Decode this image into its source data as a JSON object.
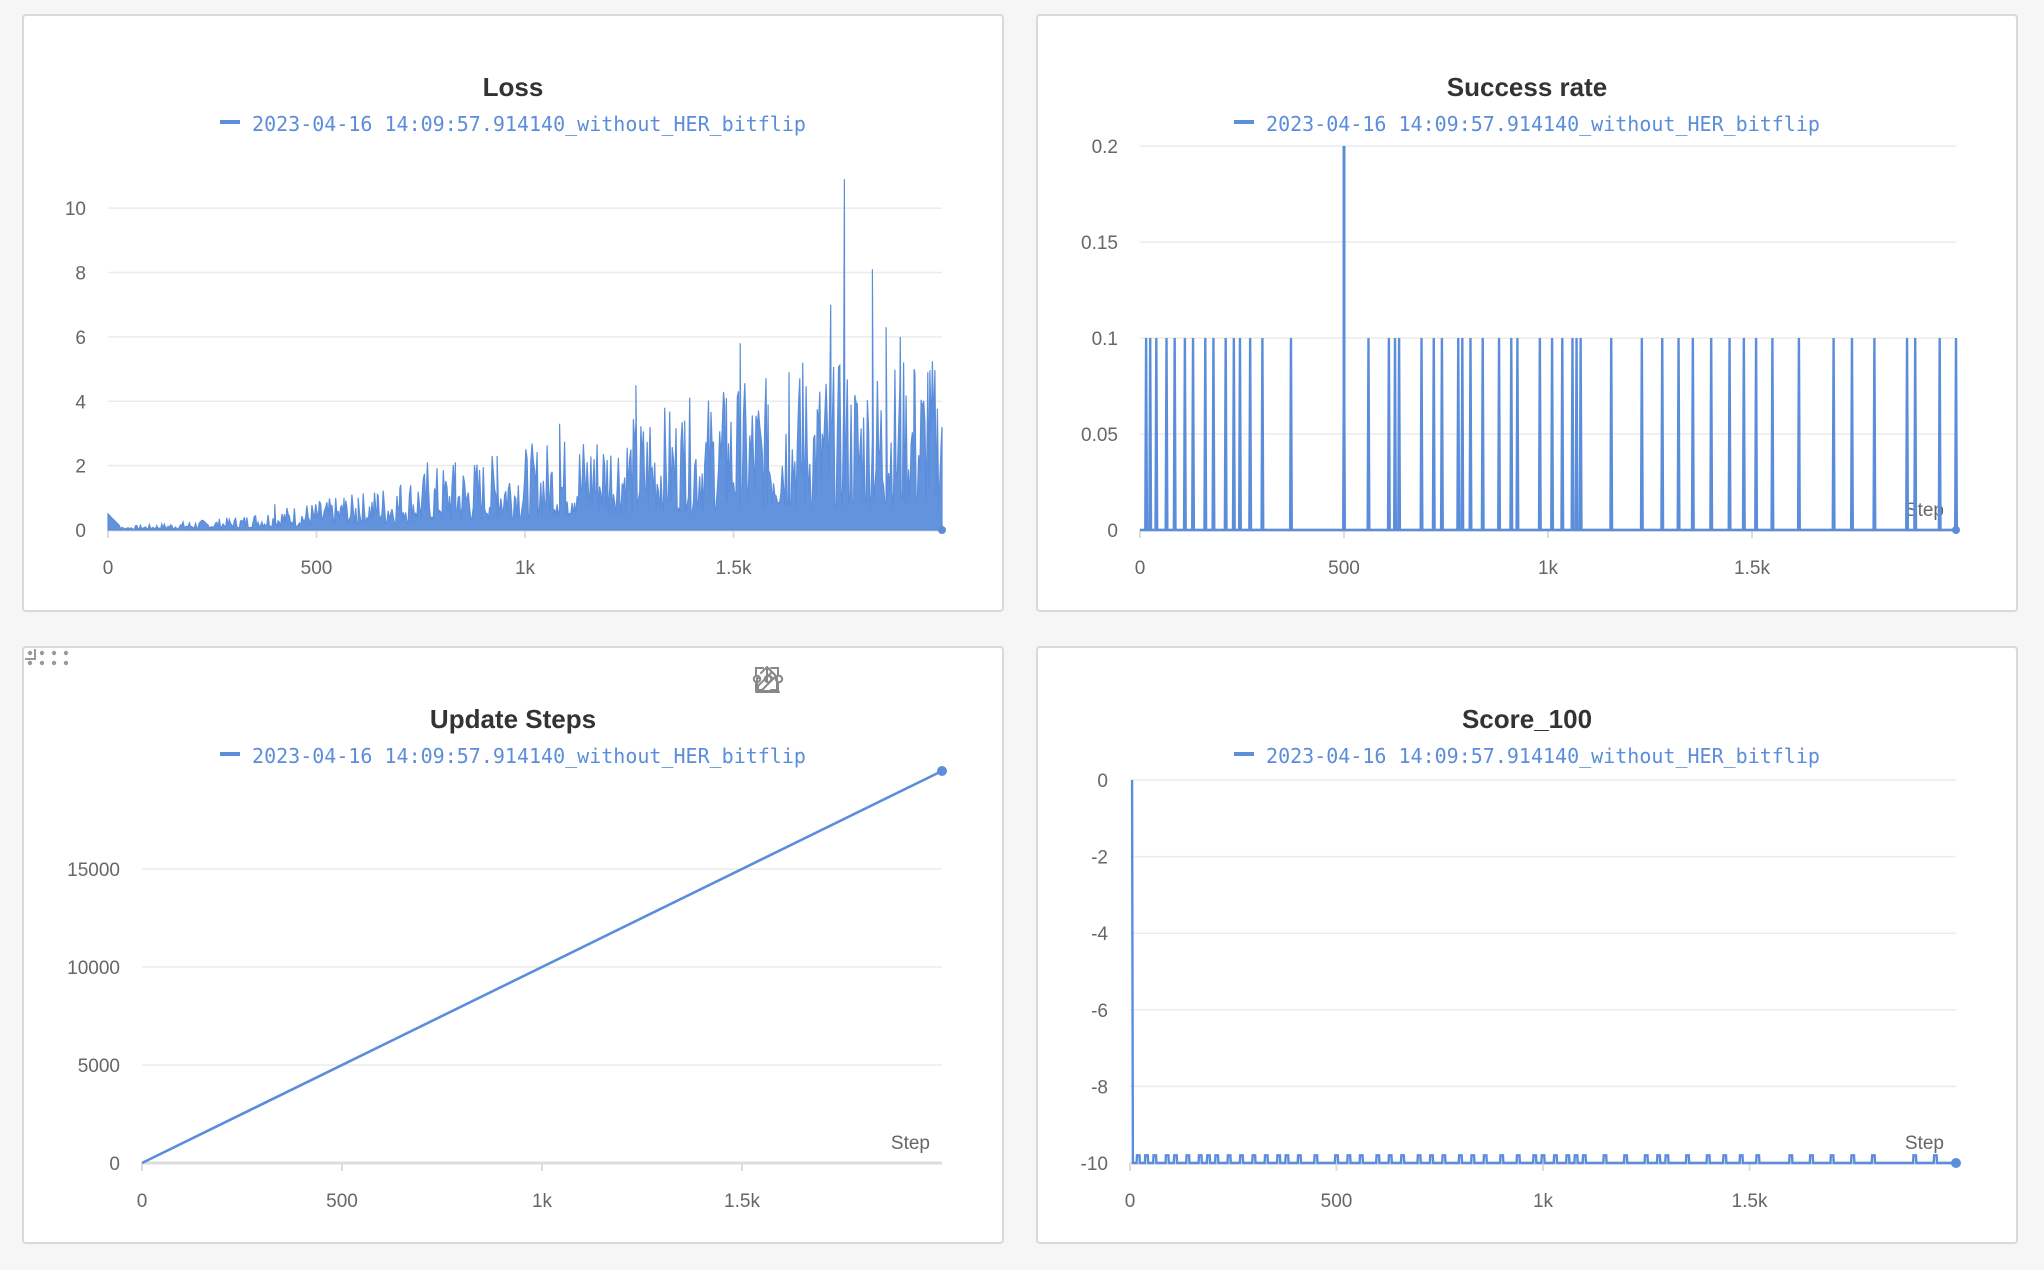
{
  "colors": {
    "series": "#5b8ddb",
    "grid": "#ececec",
    "axis": "#dddddd",
    "text": "#666666"
  },
  "panels": {
    "loss": {
      "chart_data": {
        "type": "line",
        "title": "Loss",
        "series": [
          {
            "name": "2023-04-16 14:09:57.914140_without_HER_bitflip"
          }
        ],
        "xlim": [
          0,
          2000
        ],
        "ylim": [
          0,
          11
        ],
        "x_ticks": [
          0,
          500,
          1000,
          1500
        ],
        "x_tick_labels": [
          "0",
          "500",
          "1k",
          "1.5k"
        ],
        "y_ticks": [
          0,
          2,
          4,
          6,
          8,
          10
        ],
        "y_tick_labels": [
          "0",
          "2",
          "4",
          "6",
          "8",
          "10"
        ],
        "xlabel": "",
        "ylabel": "",
        "envelope": [
          [
            0,
            0.5
          ],
          [
            30,
            0.1
          ],
          [
            100,
            0.15
          ],
          [
            200,
            0.25
          ],
          [
            300,
            0.35
          ],
          [
            400,
            0.6
          ],
          [
            500,
            0.8
          ],
          [
            600,
            1.0
          ],
          [
            700,
            1.4
          ],
          [
            800,
            1.8
          ],
          [
            900,
            2.0
          ],
          [
            1000,
            2.3
          ],
          [
            1100,
            2.6
          ],
          [
            1200,
            2.9
          ],
          [
            1300,
            3.3
          ],
          [
            1400,
            3.6
          ],
          [
            1500,
            4.0
          ],
          [
            1600,
            4.2
          ],
          [
            1700,
            4.5
          ],
          [
            1800,
            4.6
          ],
          [
            1900,
            4.7
          ],
          [
            2000,
            4.8
          ]
        ],
        "peaks": [
          [
            400,
            0.8
          ],
          [
            533,
            0.8
          ],
          [
            566,
            1.0
          ],
          [
            600,
            1.0
          ],
          [
            646,
            1.1
          ],
          [
            700,
            1.3
          ],
          [
            766,
            2.1
          ],
          [
            833,
            2.1
          ],
          [
            933,
            2.3
          ],
          [
            1083,
            3.3
          ],
          [
            1166,
            2.2
          ],
          [
            1266,
            4.5
          ],
          [
            1300,
            3.2
          ],
          [
            1383,
            3.4
          ],
          [
            1483,
            4.1
          ],
          [
            1516,
            5.8
          ],
          [
            1583,
            3.9
          ],
          [
            1633,
            4.9
          ],
          [
            1666,
            5.2
          ],
          [
            1733,
            7.0
          ],
          [
            1766,
            10.9
          ],
          [
            1833,
            8.1
          ],
          [
            1866,
            6.3
          ],
          [
            1900,
            6.0
          ],
          [
            1933,
            5.0
          ],
          [
            1966,
            4.9
          ],
          [
            2000,
            3.2
          ]
        ]
      }
    },
    "success": {
      "chart_data": {
        "type": "line",
        "title": "Success rate",
        "series": [
          {
            "name": "2023-04-16 14:09:57.914140_without_HER_bitflip"
          }
        ],
        "xlim": [
          0,
          2000
        ],
        "ylim": [
          0,
          0.2
        ],
        "x_ticks": [
          0,
          500,
          1000,
          1500
        ],
        "x_tick_labels": [
          "0",
          "500",
          "1k",
          "1.5k"
        ],
        "y_ticks": [
          0,
          0.05,
          0.1,
          0.15,
          0.2
        ],
        "y_tick_labels": [
          "0",
          "0.05",
          "0.1",
          "0.15",
          "0.2"
        ],
        "xlabel": "Step",
        "ylabel": "",
        "spikes_x": [
          15,
          25,
          40,
          65,
          85,
          110,
          130,
          160,
          180,
          210,
          230,
          245,
          270,
          300,
          370,
          500,
          560,
          610,
          625,
          635,
          690,
          720,
          740,
          780,
          790,
          810,
          840,
          880,
          910,
          925,
          980,
          1010,
          1035,
          1060,
          1070,
          1080,
          1155,
          1230,
          1280,
          1320,
          1355,
          1400,
          1445,
          1480,
          1510,
          1550,
          1615,
          1700,
          1745,
          1800,
          1880,
          1900,
          1960,
          2000
        ],
        "spike_value": 0.1,
        "peak": [
          500,
          0.2
        ]
      }
    },
    "update": {
      "chart_data": {
        "type": "line",
        "title": "Update Steps",
        "series": [
          {
            "name": "2023-04-16 14:09:57.914140_without_HER_bitflip"
          }
        ],
        "xlim": [
          0,
          2000
        ],
        "ylim": [
          0,
          20000
        ],
        "x_ticks": [
          0,
          500,
          1000,
          1500
        ],
        "x_tick_labels": [
          "0",
          "500",
          "1k",
          "1.5k"
        ],
        "y_ticks": [
          0,
          5000,
          10000,
          15000
        ],
        "y_tick_labels": [
          "0",
          "5000",
          "10000",
          "15000"
        ],
        "xlabel": "Step",
        "ylabel": "",
        "points": [
          [
            0,
            0
          ],
          [
            2000,
            20000
          ]
        ]
      }
    },
    "score": {
      "chart_data": {
        "type": "line",
        "title": "Score_100",
        "series": [
          {
            "name": "2023-04-16 14:09:57.914140_without_HER_bitflip"
          }
        ],
        "xlim": [
          0,
          2000
        ],
        "ylim": [
          -10,
          0
        ],
        "x_ticks": [
          0,
          500,
          1000,
          1500
        ],
        "x_tick_labels": [
          "0",
          "500",
          "1k",
          "1.5k"
        ],
        "y_ticks": [
          0,
          -2,
          -4,
          -6,
          -8,
          -10
        ],
        "y_tick_labels": [
          "0",
          "-2",
          "-4",
          "-6",
          "-8",
          "-10"
        ],
        "xlabel": "Step",
        "ylabel": "",
        "baseline": -10,
        "start_point": [
          5,
          0
        ],
        "bump_x": [
          20,
          40,
          60,
          90,
          110,
          140,
          170,
          190,
          210,
          240,
          270,
          300,
          330,
          360,
          380,
          410,
          450,
          500,
          530,
          560,
          600,
          630,
          660,
          700,
          730,
          760,
          800,
          830,
          860,
          900,
          940,
          980,
          1000,
          1030,
          1060,
          1080,
          1100,
          1150,
          1200,
          1250,
          1280,
          1300,
          1350,
          1400,
          1440,
          1480,
          1520,
          1600,
          1650,
          1700,
          1750,
          1800,
          1900,
          1950
        ],
        "bump_value": -9.8
      }
    }
  }
}
